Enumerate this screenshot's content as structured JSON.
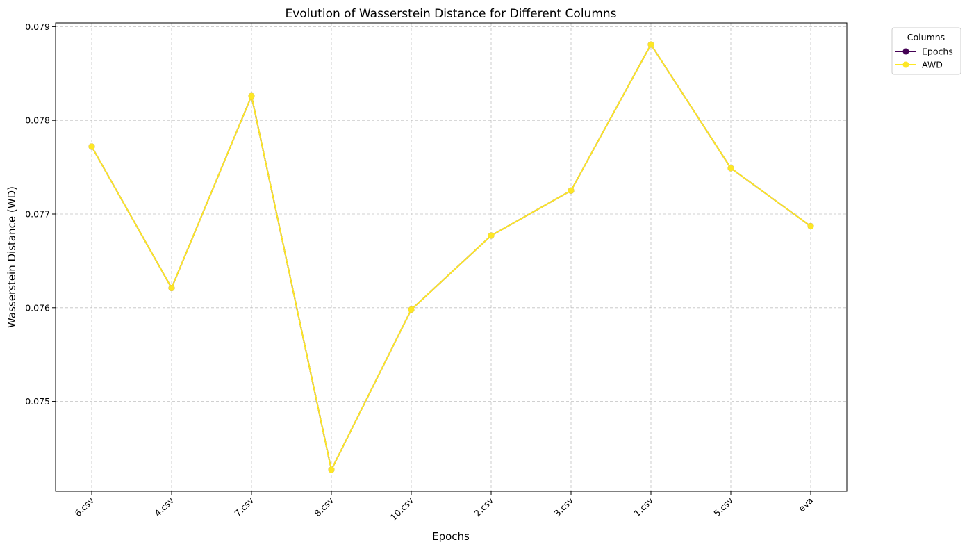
{
  "chart_data": {
    "type": "line",
    "title": "Evolution of Wasserstein Distance for Different Columns",
    "xlabel": "Epochs",
    "ylabel": "Wasserstein Distance (WD)",
    "categories": [
      "6.csv",
      "4.csv",
      "7.csv",
      "8.csv",
      "10.csv",
      "2.csv",
      "3.csv",
      "1.csv",
      "5.csv",
      "eva"
    ],
    "yticks": [
      "0.075",
      "0.076",
      "0.077",
      "0.078",
      "0.079"
    ],
    "ylim": [
      0.07404,
      0.07904
    ],
    "grid": true,
    "legend": {
      "title": "Columns",
      "placement": "outside-top-right"
    },
    "series": [
      {
        "name": "Epochs",
        "color": "#440154",
        "values": [
          0.07772,
          0.07621,
          0.07826,
          0.07427,
          0.07598,
          0.07677,
          0.07725,
          0.07881,
          0.07749,
          0.07687
        ]
      },
      {
        "name": "AWD",
        "color": "#fde725",
        "values": [
          0.07772,
          0.07621,
          0.07826,
          0.07427,
          0.07598,
          0.07677,
          0.07725,
          0.07881,
          0.07749,
          0.07687
        ]
      }
    ]
  }
}
